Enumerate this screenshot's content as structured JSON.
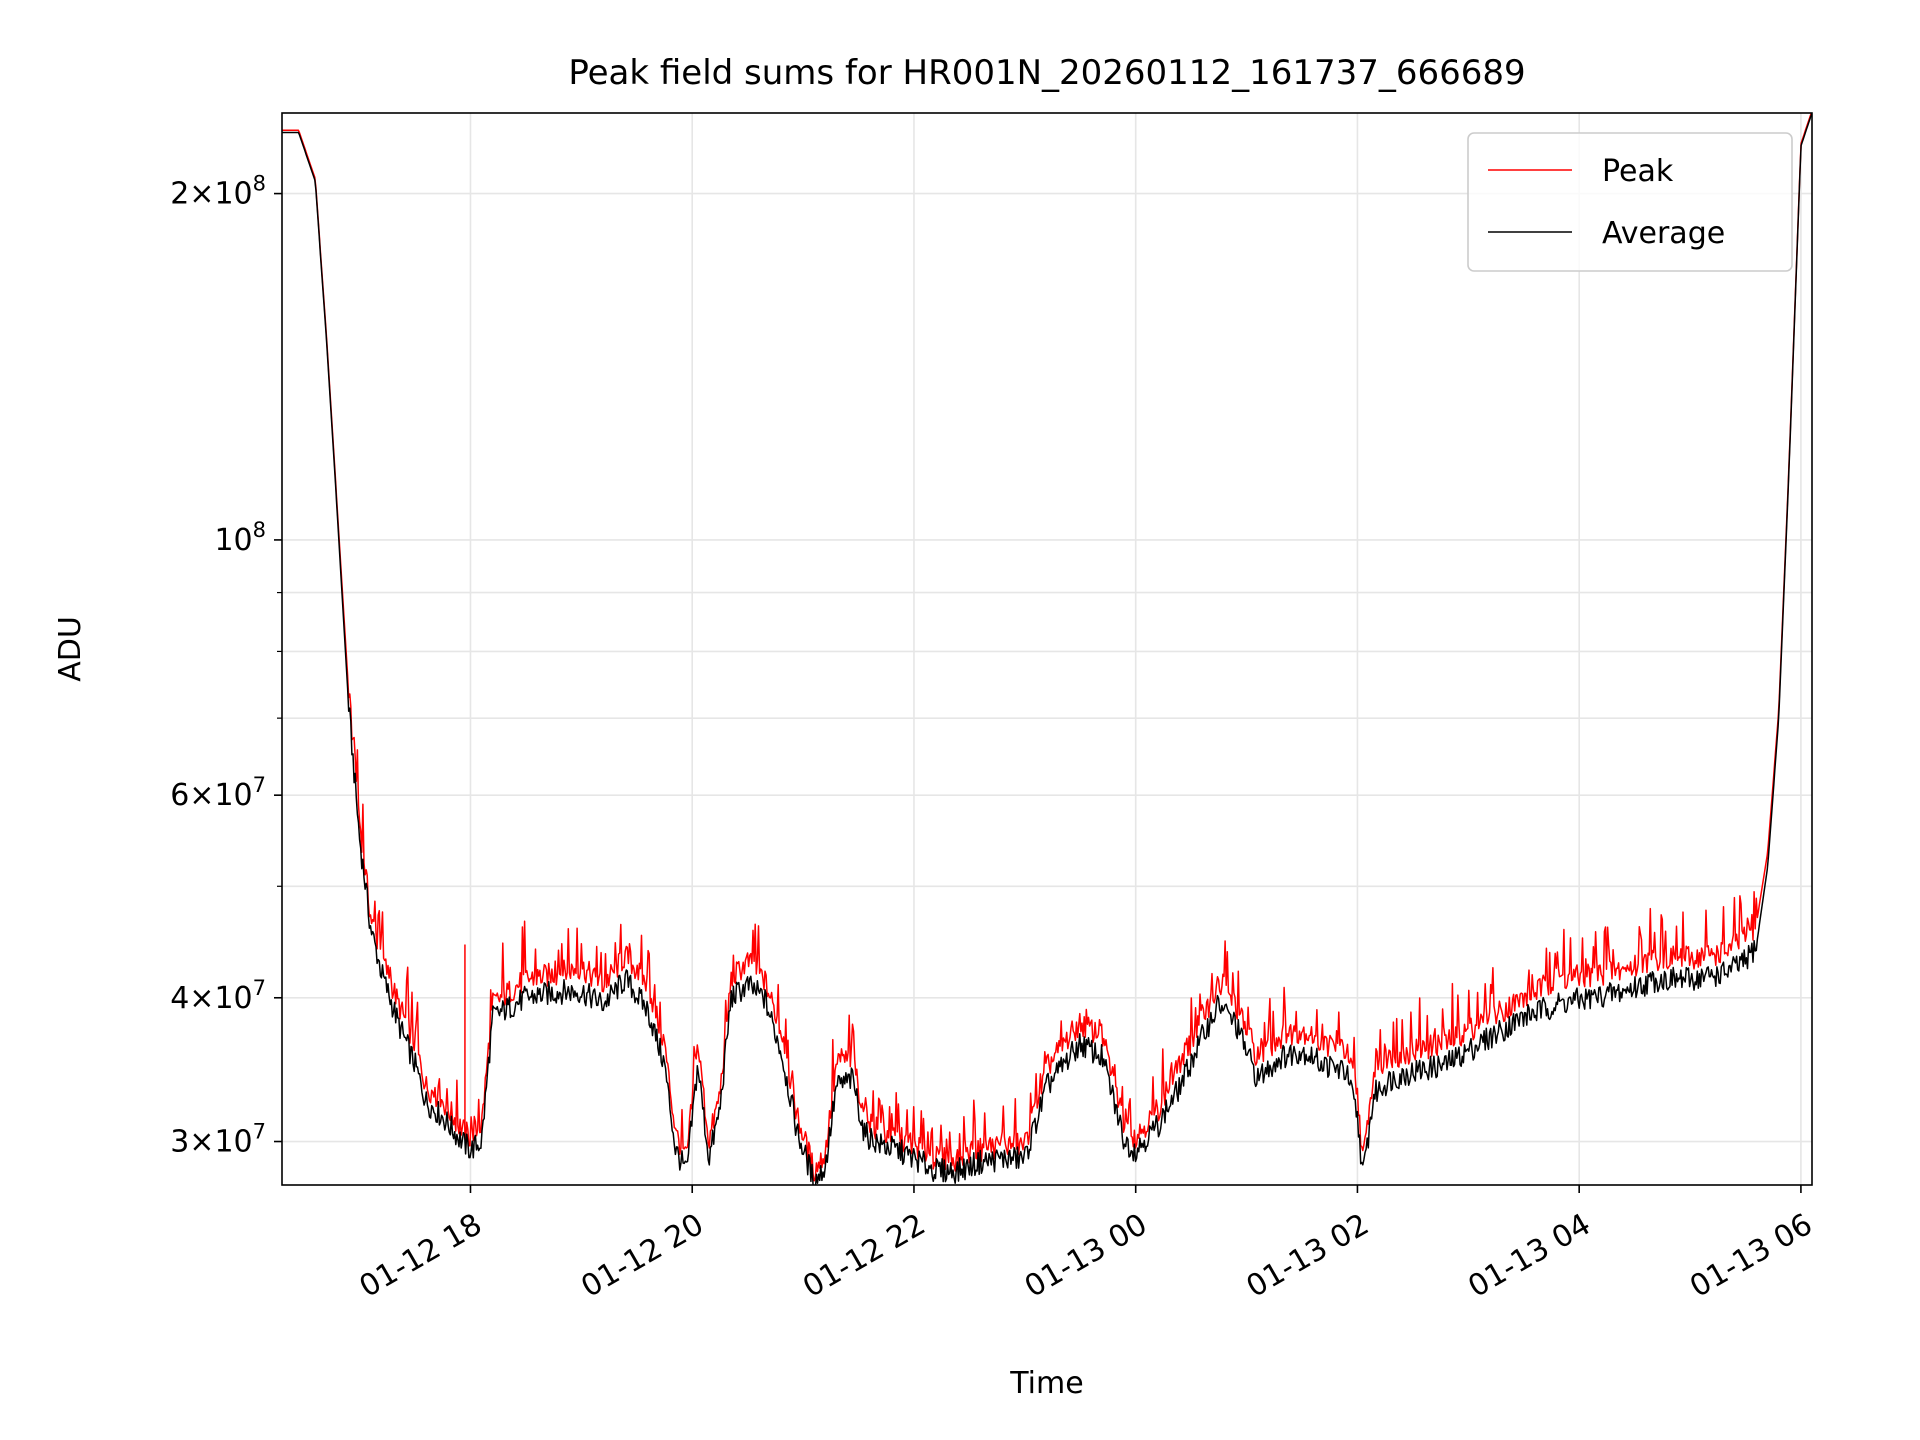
{
  "chart_data": {
    "type": "line",
    "title": "Peak field sums for HR001N_20260112_161737_666689",
    "xlabel": "Time",
    "ylabel": "ADU",
    "yscale": "log",
    "xlim_hours": [
      16.3,
      30.1
    ],
    "ylim": [
      27500000,
      235000000
    ],
    "x_ticks": [
      {
        "hour": 18,
        "label": "01-12 18"
      },
      {
        "hour": 20,
        "label": "01-12 20"
      },
      {
        "hour": 22,
        "label": "01-12 22"
      },
      {
        "hour": 24,
        "label": "01-13 00"
      },
      {
        "hour": 26,
        "label": "01-13 02"
      },
      {
        "hour": 28,
        "label": "01-13 04"
      },
      {
        "hour": 30,
        "label": "01-13 06"
      }
    ],
    "y_major_ticks": [
      {
        "value": 30000000,
        "mant": "3×10",
        "exp": "7"
      },
      {
        "value": 40000000,
        "mant": "4×10",
        "exp": "7"
      },
      {
        "value": 60000000,
        "mant": "6×10",
        "exp": "7"
      },
      {
        "value": 100000000,
        "mant": "10",
        "exp": "8"
      },
      {
        "value": 200000000,
        "mant": "2×10",
        "exp": "8"
      }
    ],
    "y_minor_ticks": [
      50000000,
      70000000,
      80000000,
      90000000
    ],
    "legend": {
      "position": "top-right",
      "entries": [
        "Peak",
        "Average"
      ]
    },
    "series": [
      {
        "name": "Average",
        "color": "#000000",
        "hours": [
          16.3,
          16.45,
          16.6,
          16.7,
          16.8,
          16.9,
          17.0,
          17.1,
          17.2,
          17.35,
          17.5,
          17.6,
          17.75,
          17.9,
          18.0,
          18.1,
          18.2,
          18.5,
          18.8,
          19.0,
          19.2,
          19.4,
          19.6,
          19.75,
          19.85,
          19.95,
          20.05,
          20.15,
          20.25,
          20.35,
          20.5,
          20.65,
          20.8,
          20.95,
          21.1,
          21.2,
          21.3,
          21.45,
          21.55,
          21.7,
          21.85,
          22.0,
          22.2,
          22.4,
          22.6,
          22.8,
          23.0,
          23.2,
          23.35,
          23.5,
          23.7,
          23.9,
          24.0,
          24.2,
          24.4,
          24.6,
          24.75,
          24.9,
          25.1,
          25.3,
          25.5,
          25.7,
          25.9,
          26.0,
          26.05,
          26.15,
          26.3,
          26.5,
          26.8,
          27.0,
          27.2,
          27.5,
          27.8,
          28.1,
          28.4,
          28.7,
          29.0,
          29.3,
          29.5,
          29.6,
          29.7,
          29.8,
          29.9,
          30.0,
          30.1
        ],
        "values": [
          226000000,
          226000000,
          205000000,
          150000000,
          105000000,
          72000000,
          55000000,
          46000000,
          42000000,
          38000000,
          35000000,
          32500000,
          31500000,
          30200000,
          29500000,
          30000000,
          38500000,
          40000000,
          40500000,
          40500000,
          39500000,
          41500000,
          39000000,
          35000000,
          29500000,
          28200000,
          35000000,
          29000000,
          32000000,
          40000000,
          41000000,
          40000000,
          36000000,
          30500000,
          27700000,
          28500000,
          33500000,
          34000000,
          30500000,
          29800000,
          29500000,
          29000000,
          28300000,
          28300000,
          28800000,
          29000000,
          29000000,
          33500000,
          35000000,
          36500000,
          35500000,
          30000000,
          29500000,
          31000000,
          33500000,
          37000000,
          39500000,
          38000000,
          34000000,
          35500000,
          36000000,
          35000000,
          34500000,
          31500000,
          28000000,
          33000000,
          34000000,
          34500000,
          35000000,
          36000000,
          37000000,
          38500000,
          39500000,
          40000000,
          40500000,
          41500000,
          41500000,
          42000000,
          43000000,
          44500000,
          52000000,
          70000000,
          120000000,
          220000000,
          235000000
        ]
      },
      {
        "name": "Peak",
        "color": "#ff0000",
        "hours": [
          16.3,
          16.45,
          16.6,
          16.7,
          16.8,
          16.9,
          17.0,
          17.1,
          17.2,
          17.35,
          17.5,
          17.6,
          17.75,
          17.9,
          18.0,
          18.1,
          18.2,
          18.5,
          18.8,
          19.0,
          19.2,
          19.4,
          19.6,
          19.75,
          19.85,
          19.95,
          20.05,
          20.15,
          20.25,
          20.35,
          20.5,
          20.65,
          20.8,
          20.95,
          21.1,
          21.2,
          21.3,
          21.45,
          21.55,
          21.7,
          21.85,
          22.0,
          22.2,
          22.4,
          22.6,
          22.8,
          23.0,
          23.2,
          23.35,
          23.5,
          23.7,
          23.9,
          24.0,
          24.2,
          24.4,
          24.6,
          24.75,
          24.9,
          25.1,
          25.3,
          25.5,
          25.7,
          25.9,
          26.0,
          26.05,
          26.15,
          26.3,
          26.5,
          26.8,
          27.0,
          27.2,
          27.5,
          27.8,
          28.1,
          28.4,
          28.7,
          29.0,
          29.3,
          29.5,
          29.6,
          29.7,
          29.8,
          29.9,
          30.0,
          30.1
        ],
        "values": [
          227000000,
          227000000,
          206000000,
          151000000,
          106000000,
          74000000,
          57000000,
          47000000,
          43500000,
          39500000,
          36500000,
          33500000,
          32500000,
          31000000,
          30200000,
          31000000,
          39500000,
          41500000,
          42000000,
          42500000,
          41000000,
          43500000,
          41000000,
          36500000,
          30500000,
          29000000,
          36500000,
          30000000,
          33000000,
          41500000,
          43000000,
          41500000,
          37500000,
          31500000,
          28300000,
          29300000,
          35000000,
          35500000,
          31500000,
          30500000,
          30200000,
          29800000,
          29000000,
          29000000,
          29500000,
          29800000,
          29800000,
          34800000,
          36500000,
          38000000,
          37000000,
          31000000,
          30300000,
          32000000,
          35000000,
          38500000,
          41000000,
          39500000,
          35500000,
          37000000,
          37500000,
          36500000,
          36000000,
          33000000,
          28800000,
          34500000,
          35500000,
          36000000,
          36500000,
          37500000,
          38500000,
          40000000,
          41500000,
          41800000,
          42300000,
          43300000,
          43300000,
          43800000,
          45000000,
          46500000,
          53500000,
          71000000,
          121000000,
          221000000,
          236000000
        ]
      }
    ],
    "spikes": [
      {
        "hour": 17.95,
        "value": 44500000,
        "base": 30500000
      }
    ]
  }
}
